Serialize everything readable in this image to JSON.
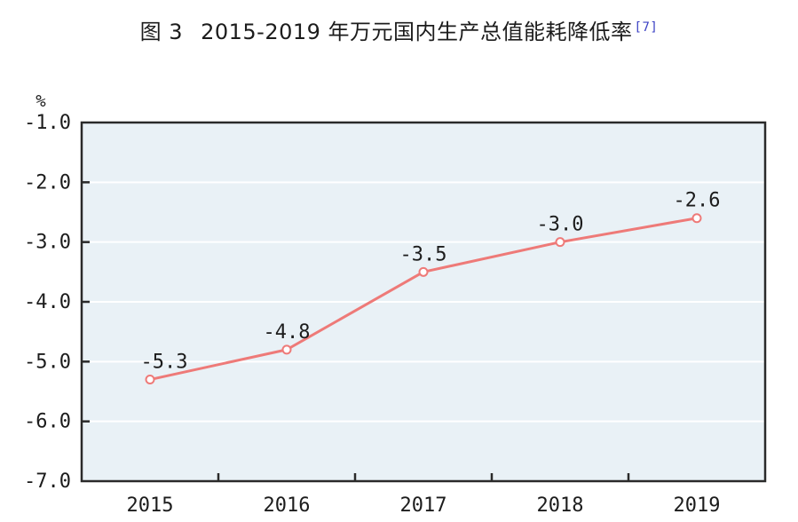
{
  "title": {
    "figure_label": "图 3",
    "text": "2015-2019 年万元国内生产总值能耗降低率",
    "footnote_ref": "[7]"
  },
  "chart_data": {
    "type": "line",
    "title": "图 3 2015-2019 年万元国内生产总值能耗降低率[7]",
    "unit_label": "%",
    "categories": [
      "2015",
      "2016",
      "2017",
      "2018",
      "2019"
    ],
    "values": [
      -5.3,
      -4.8,
      -3.5,
      -3.0,
      -2.6
    ],
    "point_labels": [
      "-5.3",
      "-4.8",
      "-3.5",
      "-3.0",
      "-2.6"
    ],
    "xlabel": "",
    "ylabel": "%",
    "ylim": [
      -7.0,
      -1.0
    ],
    "y_ticks": [
      -1.0,
      -2.0,
      -3.0,
      -4.0,
      -5.0,
      -6.0,
      -7.0
    ],
    "y_tick_labels": [
      "-1.0",
      "-2.0",
      "-3.0",
      "-4.0",
      "-5.0",
      "-6.0",
      "-7.0"
    ],
    "grid": "horizontal",
    "legend": "none",
    "colors": {
      "line": "#ee7a78",
      "marker_fill": "#ffffff",
      "plot_background": "#e9f1f6",
      "gridline": "#ffffff",
      "axis_frame": "#2a2a2a",
      "text": "#1c1c1c",
      "footnote": "#3b41c4"
    }
  }
}
